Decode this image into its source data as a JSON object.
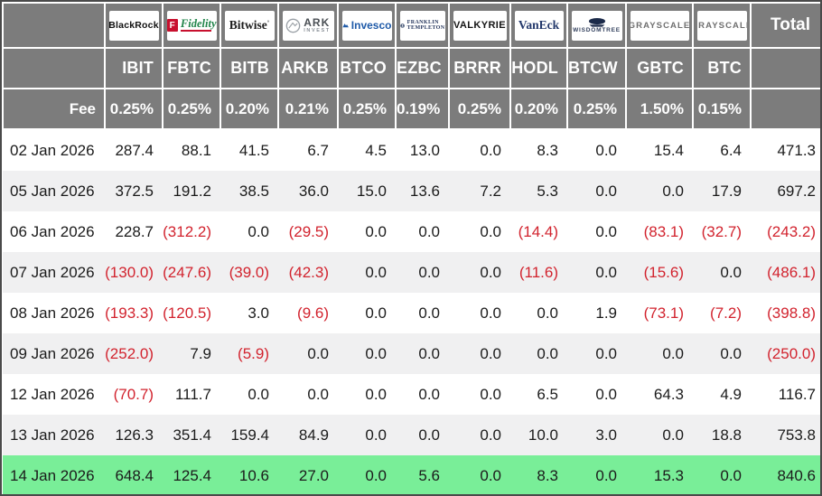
{
  "colors": {
    "header_bg": "#7c7c7c",
    "header_text": "#ffffff",
    "row_alt_bg": "#f0f0f1",
    "highlight_row_bg": "#79ee98",
    "negative_value_text": "#d2232e",
    "outer_border": "#4a4a4a"
  },
  "header": {
    "total_label": "Total",
    "fee_label": "Fee",
    "providers": [
      {
        "key": "blackrock",
        "name": "BlackRock",
        "ticker": "IBIT",
        "fee": "0.25%"
      },
      {
        "key": "fidelity",
        "name": "Fidelity",
        "mark": "F",
        "ticker": "FBTC",
        "fee": "0.25%"
      },
      {
        "key": "bitwise",
        "name": "Bitwise",
        "ticker": "BITB",
        "fee": "0.20%"
      },
      {
        "key": "ark",
        "name": "ARK",
        "sub": "INVEST",
        "ticker": "ARKB",
        "fee": "0.21%"
      },
      {
        "key": "invesco",
        "name": "Invesco",
        "ticker": "BTCO",
        "fee": "0.25%"
      },
      {
        "key": "franklin",
        "name": "FRANKLIN",
        "sub": "TEMPLETON",
        "ticker": "EZBC",
        "fee": "0.19%"
      },
      {
        "key": "valkyrie",
        "name": "VALKYRIE",
        "ticker": "BRRR",
        "fee": "0.25%"
      },
      {
        "key": "vaneck",
        "name": "VanEck",
        "ticker": "HODL",
        "fee": "0.20%"
      },
      {
        "key": "wisdomtree",
        "name": "WISDOMTREE",
        "ticker": "BTCW",
        "fee": "0.25%"
      },
      {
        "key": "grayscale",
        "name": "GRAYSCALE",
        "ticker": "GBTC",
        "fee": "1.50%"
      },
      {
        "key": "grayscale2",
        "name": "GRAYSCALE",
        "ticker": "BTC",
        "fee": "0.15%"
      }
    ]
  },
  "rows": [
    {
      "date": "02 Jan 2026",
      "highlight": false,
      "values": [
        "287.4",
        "88.1",
        "41.5",
        "6.7",
        "4.5",
        "13.0",
        "0.0",
        "8.3",
        "0.0",
        "15.4",
        "6.4",
        "471.3"
      ]
    },
    {
      "date": "05 Jan 2026",
      "highlight": false,
      "values": [
        "372.5",
        "191.2",
        "38.5",
        "36.0",
        "15.0",
        "13.6",
        "7.2",
        "5.3",
        "0.0",
        "0.0",
        "17.9",
        "697.2"
      ]
    },
    {
      "date": "06 Jan 2026",
      "highlight": false,
      "values": [
        "228.7",
        "(312.2)",
        "0.0",
        "(29.5)",
        "0.0",
        "0.0",
        "0.0",
        "(14.4)",
        "0.0",
        "(83.1)",
        "(32.7)",
        "(243.2)"
      ]
    },
    {
      "date": "07 Jan 2026",
      "highlight": false,
      "values": [
        "(130.0)",
        "(247.6)",
        "(39.0)",
        "(42.3)",
        "0.0",
        "0.0",
        "0.0",
        "(11.6)",
        "0.0",
        "(15.6)",
        "0.0",
        "(486.1)"
      ]
    },
    {
      "date": "08 Jan 2026",
      "highlight": false,
      "values": [
        "(193.3)",
        "(120.5)",
        "3.0",
        "(9.6)",
        "0.0",
        "0.0",
        "0.0",
        "0.0",
        "1.9",
        "(73.1)",
        "(7.2)",
        "(398.8)"
      ]
    },
    {
      "date": "09 Jan 2026",
      "highlight": false,
      "values": [
        "(252.0)",
        "7.9",
        "(5.9)",
        "0.0",
        "0.0",
        "0.0",
        "0.0",
        "0.0",
        "0.0",
        "0.0",
        "0.0",
        "(250.0)"
      ]
    },
    {
      "date": "12 Jan 2026",
      "highlight": false,
      "values": [
        "(70.7)",
        "111.7",
        "0.0",
        "0.0",
        "0.0",
        "0.0",
        "0.0",
        "6.5",
        "0.0",
        "64.3",
        "4.9",
        "116.7"
      ]
    },
    {
      "date": "13 Jan 2026",
      "highlight": false,
      "values": [
        "126.3",
        "351.4",
        "159.4",
        "84.9",
        "0.0",
        "0.0",
        "0.0",
        "10.0",
        "3.0",
        "0.0",
        "18.8",
        "753.8"
      ]
    },
    {
      "date": "14 Jan 2026",
      "highlight": true,
      "values": [
        "648.4",
        "125.4",
        "10.6",
        "27.0",
        "0.0",
        "5.6",
        "0.0",
        "8.3",
        "0.0",
        "15.3",
        "0.0",
        "840.6"
      ]
    }
  ],
  "chart_data": {
    "type": "table",
    "x": [
      "02 Jan 2026",
      "05 Jan 2026",
      "06 Jan 2026",
      "07 Jan 2026",
      "08 Jan 2026",
      "09 Jan 2026",
      "12 Jan 2026",
      "13 Jan 2026",
      "14 Jan 2026"
    ],
    "series": [
      {
        "name": "IBIT",
        "provider": "BlackRock",
        "fee_pct": 0.25,
        "values": [
          287.4,
          372.5,
          228.7,
          -130.0,
          -193.3,
          -252.0,
          -70.7,
          126.3,
          648.4
        ]
      },
      {
        "name": "FBTC",
        "provider": "Fidelity",
        "fee_pct": 0.25,
        "values": [
          88.1,
          191.2,
          -312.2,
          -247.6,
          -120.5,
          7.9,
          111.7,
          351.4,
          125.4
        ]
      },
      {
        "name": "BITB",
        "provider": "Bitwise",
        "fee_pct": 0.2,
        "values": [
          41.5,
          38.5,
          0.0,
          -39.0,
          3.0,
          -5.9,
          0.0,
          159.4,
          10.6
        ]
      },
      {
        "name": "ARKB",
        "provider": "ARK Invest",
        "fee_pct": 0.21,
        "values": [
          6.7,
          36.0,
          -29.5,
          -42.3,
          -9.6,
          0.0,
          0.0,
          84.9,
          27.0
        ]
      },
      {
        "name": "BTCO",
        "provider": "Invesco",
        "fee_pct": 0.25,
        "values": [
          4.5,
          15.0,
          0.0,
          0.0,
          0.0,
          0.0,
          0.0,
          0.0,
          0.0
        ]
      },
      {
        "name": "EZBC",
        "provider": "Franklin Templeton",
        "fee_pct": 0.19,
        "values": [
          13.0,
          13.6,
          0.0,
          0.0,
          0.0,
          0.0,
          0.0,
          0.0,
          5.6
        ]
      },
      {
        "name": "BRRR",
        "provider": "Valkyrie",
        "fee_pct": 0.25,
        "values": [
          0.0,
          7.2,
          0.0,
          0.0,
          0.0,
          0.0,
          0.0,
          0.0,
          0.0
        ]
      },
      {
        "name": "HODL",
        "provider": "VanEck",
        "fee_pct": 0.2,
        "values": [
          8.3,
          5.3,
          -14.4,
          -11.6,
          0.0,
          0.0,
          6.5,
          10.0,
          8.3
        ]
      },
      {
        "name": "BTCW",
        "provider": "WisdomTree",
        "fee_pct": 0.25,
        "values": [
          0.0,
          0.0,
          0.0,
          0.0,
          1.9,
          0.0,
          0.0,
          3.0,
          0.0
        ]
      },
      {
        "name": "GBTC",
        "provider": "Grayscale",
        "fee_pct": 1.5,
        "values": [
          15.4,
          0.0,
          -83.1,
          -15.6,
          -73.1,
          0.0,
          64.3,
          0.0,
          15.3
        ]
      },
      {
        "name": "BTC",
        "provider": "Grayscale",
        "fee_pct": 0.15,
        "values": [
          6.4,
          17.9,
          -32.7,
          0.0,
          -7.2,
          0.0,
          4.9,
          18.8,
          0.0
        ]
      },
      {
        "name": "Total",
        "values": [
          471.3,
          697.2,
          -243.2,
          -486.1,
          -398.8,
          -250.0,
          116.7,
          753.8,
          840.6
        ]
      }
    ],
    "notes": "Negative flows rendered in red parentheses; last row (14 Jan 2026) highlighted green"
  }
}
